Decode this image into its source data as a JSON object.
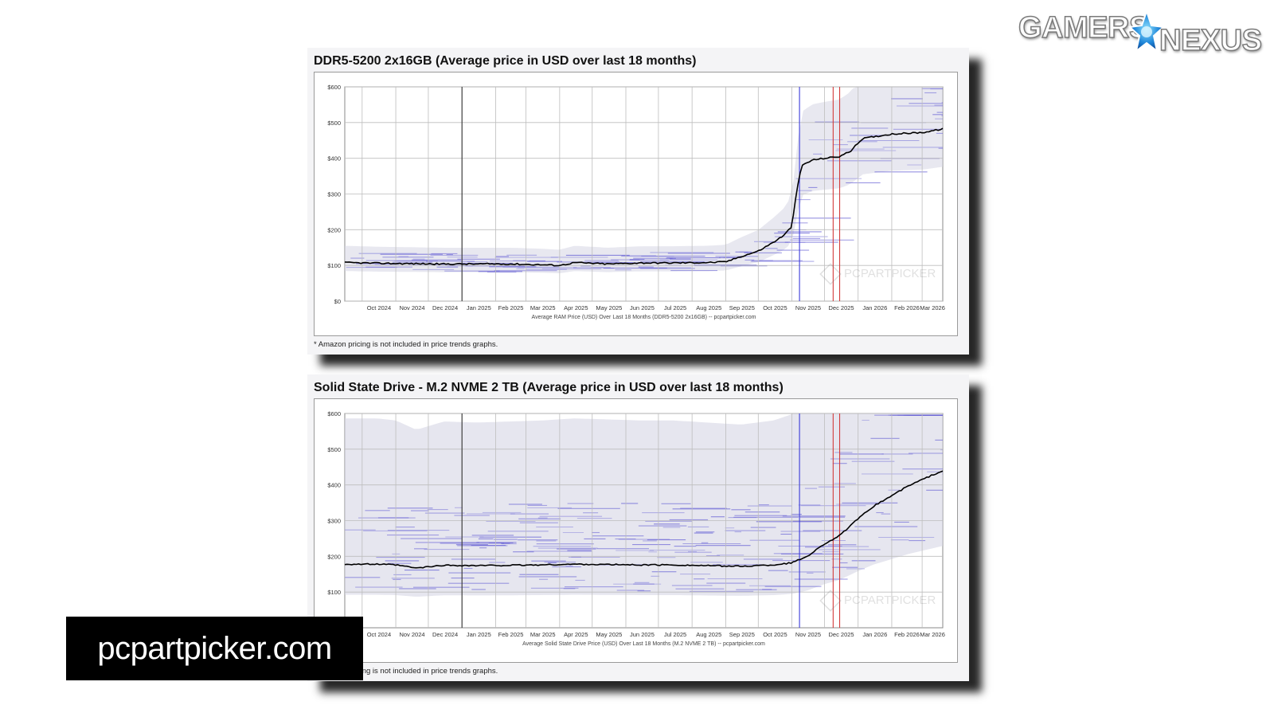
{
  "logo": {
    "word_1": "GAMERS",
    "word_2": "NEXUS",
    "icon": "gn-star-logo-icon"
  },
  "banner": {
    "text": "pcpartpicker.com"
  },
  "colors": {
    "average_line": "#000000",
    "price_band": "#d6d6e4",
    "listing_lines": "#6a64d6",
    "marker_blue": "#3b3bd9",
    "marker_red": "#d23b3b",
    "grid": "#bdbdbd"
  },
  "chart_data": [
    {
      "type": "line",
      "id": "ram",
      "title": "DDR5-5200 2x16GB (Average price in USD over last 18 months)",
      "xlabel": "Average RAM Price (USD) Over Last 18 Months (DDR5-5200 2x16GB) -- pcpartpicker.com",
      "footnote": "* Amazon pricing is not included in price trends graphs.",
      "x_range": [
        "2024-09-15",
        "2026-03-20"
      ],
      "ylim": [
        0,
        600
      ],
      "y_ticks": [
        0,
        100,
        200,
        300,
        400,
        500,
        600
      ],
      "y_tick_labels": [
        "$0",
        "$100",
        "$200",
        "$300",
        "$400",
        "$500",
        "$600"
      ],
      "x_tick_labels": [
        "Oct 2024",
        "Nov 2024",
        "Dec 2024",
        "Jan 2025",
        "Feb 2025",
        "Mar 2025",
        "Apr 2025",
        "May 2025",
        "Jun 2025",
        "Jul 2025",
        "Aug 2025",
        "Sep 2025",
        "Oct 2025",
        "Nov 2025",
        "Dec 2025",
        "Jan 2026",
        "Feb 2026",
        "Mar 2026"
      ],
      "grid": true,
      "vertical_markers": [
        {
          "date": "2025-01-01",
          "color": "#333333"
        },
        {
          "date": "2025-11-08",
          "color": "#3b3bd9"
        },
        {
          "date": "2025-12-09",
          "color": "#d23b3b"
        },
        {
          "date": "2025-12-15",
          "color": "#d23b3b"
        }
      ],
      "series": [
        {
          "role": "average",
          "x": [
            "2024-09-15",
            "2024-10-15",
            "2024-11-15",
            "2024-12-15",
            "2025-01-15",
            "2025-02-15",
            "2025-03-15",
            "2025-04-01",
            "2025-04-15",
            "2025-05-15",
            "2025-06-15",
            "2025-07-15",
            "2025-08-15",
            "2025-09-01",
            "2025-09-15",
            "2025-10-01",
            "2025-10-15",
            "2025-10-25",
            "2025-11-01",
            "2025-11-05",
            "2025-11-10",
            "2025-11-20",
            "2025-12-01",
            "2025-12-15",
            "2025-12-25",
            "2026-01-05",
            "2026-01-15",
            "2026-02-01",
            "2026-02-15",
            "2026-03-01",
            "2026-03-20"
          ],
          "y": [
            108,
            106,
            105,
            104,
            104,
            104,
            102,
            100,
            108,
            104,
            107,
            107,
            108,
            110,
            125,
            140,
            165,
            185,
            210,
            300,
            380,
            395,
            400,
            405,
            420,
            455,
            460,
            468,
            470,
            472,
            482
          ]
        }
      ]
    },
    {
      "type": "line",
      "id": "ssd",
      "title": "Solid State Drive - M.2 NVME 2 TB (Average price in USD over last 18 months)",
      "xlabel": "Average Solid State Drive Price (USD) Over Last 18 Months (M.2 NVME 2 TB) -- pcpartpicker.com",
      "footnote": "* Amazon pricing is not included in price trends graphs.",
      "x_range": [
        "2024-09-15",
        "2026-03-20"
      ],
      "ylim": [
        0,
        600
      ],
      "y_ticks": [
        100,
        200,
        300,
        400,
        500,
        600
      ],
      "y_tick_labels": [
        "$100",
        "$200",
        "$300",
        "$400",
        "$500",
        "$600"
      ],
      "x_tick_labels": [
        "Oct 2024",
        "Nov 2024",
        "Dec 2024",
        "Jan 2025",
        "Feb 2025",
        "Mar 2025",
        "Apr 2025",
        "May 2025",
        "Jun 2025",
        "Jul 2025",
        "Aug 2025",
        "Sep 2025",
        "Oct 2025",
        "Nov 2025",
        "Dec 2025",
        "Jan 2026",
        "Feb 2026",
        "Mar 2026"
      ],
      "grid": true,
      "vertical_markers": [
        {
          "date": "2025-01-01",
          "color": "#333333"
        },
        {
          "date": "2025-11-08",
          "color": "#3b3bd9"
        },
        {
          "date": "2025-12-09",
          "color": "#d23b3b"
        },
        {
          "date": "2025-12-15",
          "color": "#d23b3b"
        }
      ],
      "series": [
        {
          "role": "average",
          "x": [
            "2024-09-15",
            "2024-10-15",
            "2024-11-01",
            "2024-11-20",
            "2024-12-15",
            "2025-01-15",
            "2025-02-15",
            "2025-03-15",
            "2025-04-15",
            "2025-05-15",
            "2025-06-15",
            "2025-07-15",
            "2025-08-15",
            "2025-09-15",
            "2025-10-15",
            "2025-11-01",
            "2025-11-15",
            "2025-12-01",
            "2025-12-15",
            "2026-01-01",
            "2026-01-15",
            "2026-02-01",
            "2026-02-15",
            "2026-03-01",
            "2026-03-20"
          ],
          "y": [
            178,
            178,
            176,
            167,
            175,
            174,
            175,
            176,
            178,
            177,
            176,
            176,
            174,
            172,
            176,
            182,
            200,
            235,
            258,
            305,
            340,
            370,
            395,
            415,
            440
          ]
        }
      ]
    }
  ]
}
